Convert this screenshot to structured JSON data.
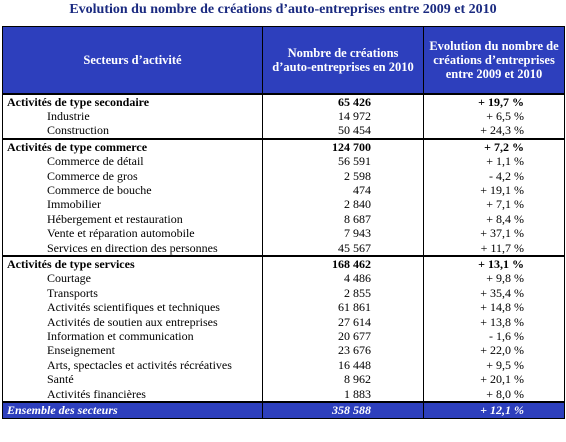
{
  "title": "Evolution du nombre de créations d’auto-entreprises entre 2009 et 2010",
  "header": [
    "Secteurs d’activité",
    "Nombre de créations d’auto-entreprises en 2010",
    "Evolution du nombre de créations d’entreprises entre 2009 et 2010"
  ],
  "groups": [
    {
      "label": "Activités de type secondaire",
      "value": "65 426",
      "change": "+ 19,7 %",
      "items": [
        {
          "label": "Industrie",
          "value": "14 972",
          "change": "+ 6,5 %"
        },
        {
          "label": "Construction",
          "value": "50 454",
          "change": "+ 24,3 %"
        }
      ]
    },
    {
      "label": "Activités de type commerce",
      "value": "124 700",
      "change": "+ 7,2 %",
      "items": [
        {
          "label": "Commerce de détail",
          "value": "56 591",
          "change": "+ 1,1 %"
        },
        {
          "label": "Commerce de gros",
          "value": "2 598",
          "change": "- 4,2 %"
        },
        {
          "label": "Commerce de bouche",
          "value": "474",
          "change": "+ 19,1 %"
        },
        {
          "label": "Immobilier",
          "value": "2 840",
          "change": "+ 7,1 %"
        },
        {
          "label": "Hébergement et restauration",
          "value": "8 687",
          "change": "+ 8,4 %"
        },
        {
          "label": "Vente et réparation automobile",
          "value": "7 943",
          "change": "+ 37,1 %"
        },
        {
          "label": "Services en direction des personnes",
          "value": "45 567",
          "change": "+ 11,7 %"
        }
      ]
    },
    {
      "label": "Activités de type services",
      "value": "168 462",
      "change": "+ 13,1 %",
      "items": [
        {
          "label": "Courtage",
          "value": "4 486",
          "change": "+ 9,8 %"
        },
        {
          "label": "Transports",
          "value": "2 855",
          "change": "+ 35,4 %"
        },
        {
          "label": "Activités scientifiques et techniques",
          "value": "61 861",
          "change": "+ 14,8 %"
        },
        {
          "label": "Activités de soutien aux entreprises",
          "value": "27 614",
          "change": "+ 13,8 %"
        },
        {
          "label": "Information et communication",
          "value": "20 677",
          "change": "- 1,6 %"
        },
        {
          "label": "Enseignement",
          "value": "23 676",
          "change": "+ 22,0 %"
        },
        {
          "label": "Arts, spectacles et activités récréatives",
          "value": "16 448",
          "change": "+ 9,5 %"
        },
        {
          "label": "Santé",
          "value": "8 962",
          "change": "+ 20,1 %"
        },
        {
          "label": "Activités financières",
          "value": "1 883",
          "change": "+ 8,0 %"
        }
      ]
    }
  ],
  "total": {
    "label": "Ensemble des secteurs",
    "value": "358 588",
    "change": "+ 12,1 %"
  }
}
